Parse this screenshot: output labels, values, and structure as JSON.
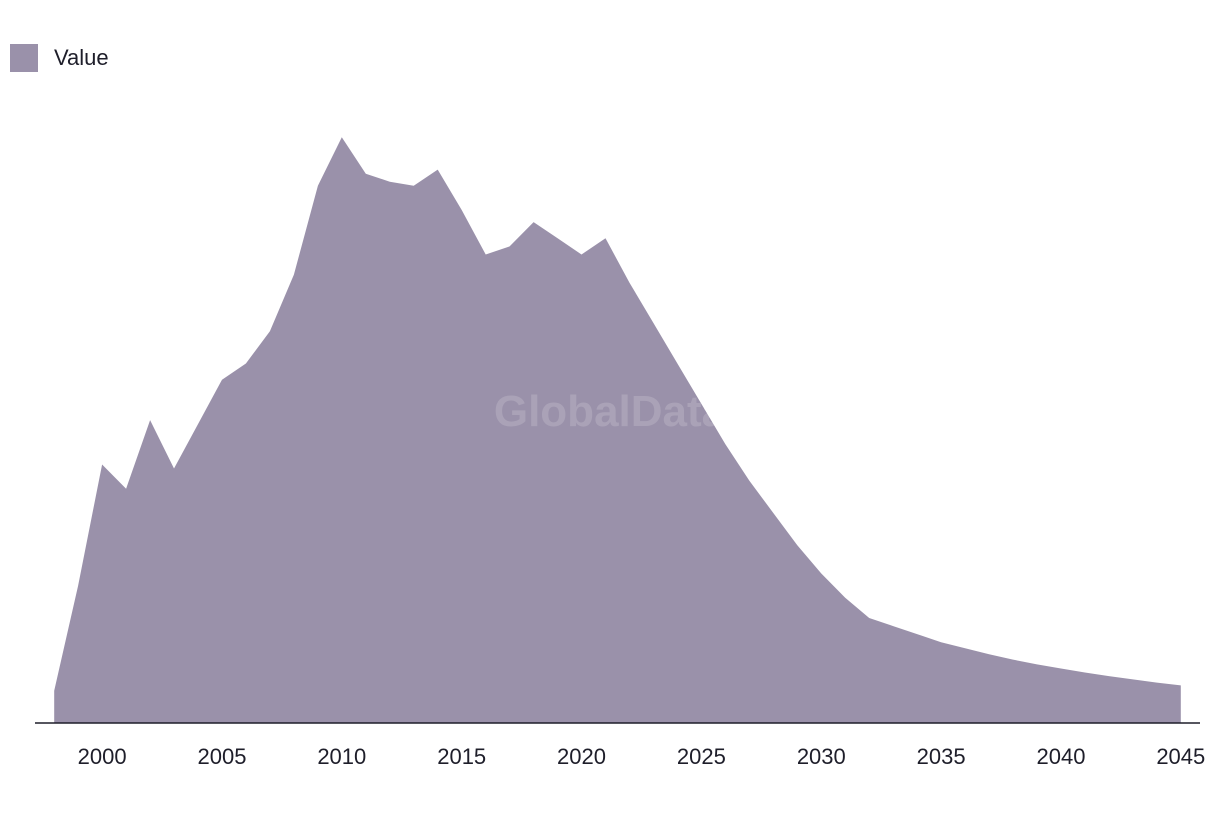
{
  "chart_data": {
    "type": "area",
    "title": "",
    "xlabel": "",
    "ylabel": "",
    "legend": {
      "position": "top-left",
      "entries": [
        "Value"
      ]
    },
    "series": [
      {
        "name": "Value",
        "color": "#9a91aa",
        "x": [
          1998,
          1999,
          2000,
          2001,
          2002,
          2003,
          2004,
          2005,
          2006,
          2007,
          2008,
          2009,
          2010,
          2011,
          2012,
          2013,
          2014,
          2015,
          2016,
          2017,
          2018,
          2019,
          2020,
          2021,
          2022,
          2023,
          2024,
          2025,
          2026,
          2027,
          2028,
          2029,
          2030,
          2031,
          2032,
          2033,
          2034,
          2035,
          2036,
          2037,
          2038,
          2039,
          2040,
          2041,
          2042,
          2043,
          2044,
          2045
        ],
        "values": [
          5,
          31,
          61,
          55,
          72,
          60,
          71,
          82,
          86,
          94,
          108,
          130,
          142,
          133,
          131,
          130,
          134,
          124,
          113,
          115,
          121,
          117,
          113,
          117,
          106,
          96,
          86,
          76,
          66,
          57,
          49,
          41,
          34,
          28,
          23,
          21,
          19,
          17,
          15.5,
          14,
          12.7,
          11.5,
          10.5,
          9.5,
          8.6,
          7.8,
          7,
          6.3
        ]
      }
    ],
    "xticks": [
      "2000",
      "2005",
      "2010",
      "2015",
      "2020",
      "2025",
      "2030",
      "2035",
      "2040",
      "2045"
    ],
    "xlim": [
      1997.2,
      2045.8
    ],
    "ylim": [
      -3,
      150
    ],
    "grid": false,
    "watermark": "GlobalData"
  }
}
